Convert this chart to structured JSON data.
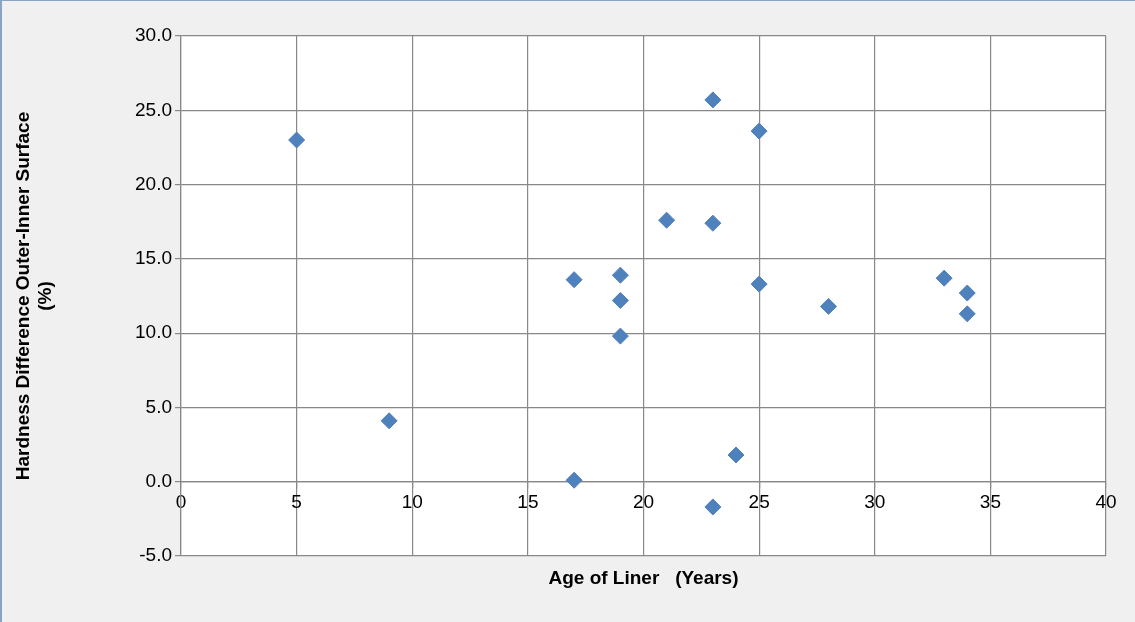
{
  "chart_data": {
    "type": "scatter",
    "xlabel": "Age of Liner   (Years)",
    "ylabel": "Hardness Difference Outer-Inner Surface (%)",
    "x": [
      5,
      9,
      17,
      17,
      19,
      19,
      19,
      21,
      23,
      23,
      23,
      24,
      25,
      25,
      28,
      33,
      34,
      34
    ],
    "series": [
      {
        "color": "#4f81bd",
        "values": [
          23.0,
          4.1,
          13.6,
          0.1,
          13.9,
          12.2,
          9.8,
          17.6,
          25.7,
          17.4,
          -1.7,
          1.8,
          23.6,
          13.3,
          11.8,
          13.7,
          12.7,
          11.3
        ]
      }
    ],
    "xlim": [
      0,
      40
    ],
    "xticks": [
      0,
      5,
      10,
      15,
      20,
      25,
      30,
      35,
      40
    ],
    "ylim": [
      -5,
      30
    ],
    "yticks": [
      {
        "value": -5,
        "label": "-5.0"
      },
      {
        "value": 0,
        "label": "0.0"
      },
      {
        "value": 5,
        "label": "5.0"
      },
      {
        "value": 10,
        "label": "10.0"
      },
      {
        "value": 15,
        "label": "15.0"
      },
      {
        "value": 20,
        "label": "20.0"
      },
      {
        "value": 25,
        "label": "25.0"
      },
      {
        "value": 30,
        "label": "30.0"
      }
    ],
    "grid": true,
    "legend": false,
    "marker": "diamond"
  }
}
